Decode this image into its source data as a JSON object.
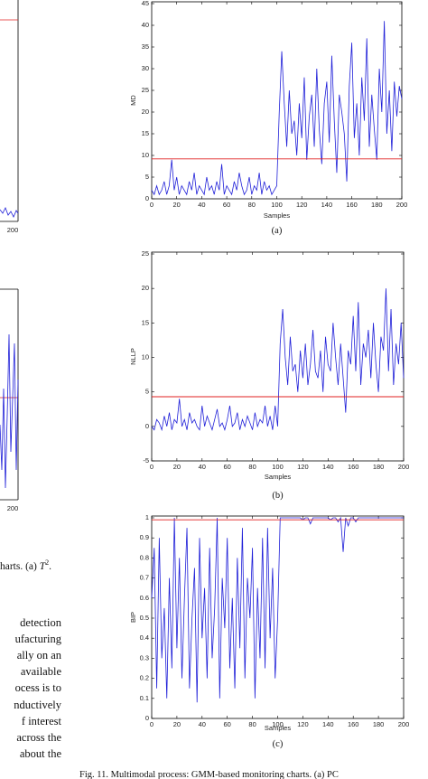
{
  "chart_data": [
    {
      "type": "line",
      "y_label": "MD",
      "x_label": "Samples",
      "panel_label": "(a)",
      "color": "#1f1fd8",
      "control_limit": 9.2,
      "control_color": "#e02020",
      "x": [
        0,
        2,
        4,
        6,
        8,
        10,
        12,
        14,
        16,
        18,
        20,
        22,
        24,
        26,
        28,
        30,
        32,
        34,
        36,
        38,
        40,
        42,
        44,
        46,
        48,
        50,
        52,
        54,
        56,
        58,
        60,
        62,
        64,
        66,
        68,
        70,
        72,
        74,
        76,
        78,
        80,
        82,
        84,
        86,
        88,
        90,
        92,
        94,
        96,
        98,
        100,
        102,
        104,
        106,
        108,
        110,
        112,
        114,
        116,
        118,
        120,
        122,
        124,
        126,
        128,
        130,
        132,
        134,
        136,
        138,
        140,
        142,
        144,
        146,
        148,
        150,
        152,
        154,
        156,
        158,
        160,
        162,
        164,
        166,
        168,
        170,
        172,
        174,
        176,
        178,
        180,
        182,
        184,
        186,
        188,
        190,
        192,
        194,
        196,
        198,
        200
      ],
      "values": [
        2,
        1,
        3,
        1,
        2,
        4,
        1,
        3,
        9,
        2,
        5,
        1,
        3,
        2,
        1,
        4,
        2,
        6,
        1,
        3,
        2,
        1,
        5,
        2,
        3,
        1,
        4,
        2,
        8,
        1,
        3,
        2,
        1,
        4,
        2,
        6,
        3,
        1,
        2,
        5,
        1,
        3,
        2,
        6,
        1,
        4,
        2,
        3,
        1,
        2,
        3,
        20,
        34,
        22,
        12,
        25,
        15,
        18,
        10,
        22,
        14,
        28,
        9,
        19,
        24,
        12,
        30,
        16,
        8,
        22,
        27,
        13,
        33,
        18,
        6,
        24,
        20,
        15,
        4,
        26,
        36,
        14,
        22,
        10,
        28,
        18,
        37,
        12,
        24,
        16,
        9,
        30,
        20,
        41,
        15,
        25,
        11,
        27,
        19,
        26,
        23
      ],
      "xlim": [
        0,
        200
      ],
      "xticks": [
        0,
        20,
        40,
        60,
        80,
        100,
        120,
        140,
        160,
        180,
        200
      ],
      "ylim": [
        0,
        45
      ],
      "yticks": [
        0,
        5,
        10,
        15,
        20,
        25,
        30,
        35,
        40,
        45
      ]
    },
    {
      "type": "line",
      "y_label": "NLLP",
      "x_label": "Samples",
      "panel_label": "(b)",
      "color": "#1f1fd8",
      "control_limit": 4.3,
      "control_color": "#e02020",
      "x": [
        0,
        2,
        4,
        6,
        8,
        10,
        12,
        14,
        16,
        18,
        20,
        22,
        24,
        26,
        28,
        30,
        32,
        34,
        36,
        38,
        40,
        42,
        44,
        46,
        48,
        50,
        52,
        54,
        56,
        58,
        60,
        62,
        64,
        66,
        68,
        70,
        72,
        74,
        76,
        78,
        80,
        82,
        84,
        86,
        88,
        90,
        92,
        94,
        96,
        98,
        100,
        102,
        104,
        106,
        108,
        110,
        112,
        114,
        116,
        118,
        120,
        122,
        124,
        126,
        128,
        130,
        132,
        134,
        136,
        138,
        140,
        142,
        144,
        146,
        148,
        150,
        152,
        154,
        156,
        158,
        160,
        162,
        164,
        166,
        168,
        170,
        172,
        174,
        176,
        178,
        180,
        182,
        184,
        186,
        188,
        190,
        192,
        194,
        196,
        198,
        200
      ],
      "values": [
        0,
        -0.5,
        1,
        0.5,
        -0.5,
        1.5,
        0,
        2,
        -0.5,
        1,
        0.5,
        4,
        0,
        1,
        -0.5,
        2,
        0.5,
        1,
        0,
        -0.5,
        3,
        0,
        1.5,
        0.5,
        -0.5,
        1,
        2.5,
        0,
        0.5,
        -0.5,
        1,
        3,
        0,
        0.5,
        2,
        -0.5,
        1,
        0,
        1.5,
        0.5,
        -0.5,
        2,
        0,
        1,
        0.5,
        3,
        0,
        1.5,
        -0.5,
        3,
        0,
        12,
        17,
        10,
        6,
        13,
        8,
        9,
        5,
        11,
        7,
        12,
        6,
        9,
        14,
        8,
        7,
        11,
        5,
        13,
        9,
        8,
        15,
        10,
        6,
        12,
        7,
        2,
        11,
        9,
        16,
        8,
        18,
        6,
        12,
        10,
        14,
        7,
        15,
        9,
        5,
        13,
        11,
        20,
        8,
        17,
        6,
        12,
        9,
        15,
        7
      ],
      "xlim": [
        0,
        200
      ],
      "xticks": [
        0,
        20,
        40,
        60,
        80,
        100,
        120,
        140,
        160,
        180,
        200
      ],
      "ylim": [
        -5,
        25
      ],
      "yticks": [
        -5,
        0,
        5,
        10,
        15,
        20,
        25
      ]
    },
    {
      "type": "line",
      "y_label": "BIP",
      "x_label": "Samples",
      "panel_label": "(c)",
      "color": "#1f1fd8",
      "control_limit": 0.99,
      "control_color": "#e02020",
      "x": [
        0,
        2,
        4,
        6,
        8,
        10,
        12,
        14,
        16,
        18,
        20,
        22,
        24,
        26,
        28,
        30,
        32,
        34,
        36,
        38,
        40,
        42,
        44,
        46,
        48,
        50,
        52,
        54,
        56,
        58,
        60,
        62,
        64,
        66,
        68,
        70,
        72,
        74,
        76,
        78,
        80,
        82,
        84,
        86,
        88,
        90,
        92,
        94,
        96,
        98,
        100,
        102,
        104,
        106,
        108,
        110,
        112,
        114,
        116,
        118,
        120,
        122,
        124,
        126,
        128,
        130,
        132,
        134,
        136,
        138,
        140,
        142,
        144,
        146,
        148,
        150,
        152,
        154,
        156,
        158,
        160,
        162,
        164,
        166,
        168,
        170,
        172,
        174,
        176,
        178,
        180,
        182,
        184,
        186,
        188,
        190,
        192,
        194,
        196,
        198,
        200
      ],
      "values": [
        0.6,
        0.85,
        0.15,
        0.9,
        0.3,
        0.55,
        0.1,
        0.7,
        0.25,
        1,
        0.35,
        0.8,
        0.2,
        0.6,
        0.95,
        0.15,
        0.5,
        0.75,
        0.08,
        0.9,
        0.4,
        0.65,
        0.2,
        0.85,
        0.3,
        0.55,
        1,
        0.1,
        0.7,
        0.45,
        0.9,
        0.25,
        0.6,
        0.15,
        0.8,
        0.35,
        0.95,
        0.2,
        0.7,
        0.5,
        0.85,
        0.1,
        0.65,
        0.3,
        0.9,
        0.25,
        0.95,
        0.4,
        0.75,
        0.2,
        0.5,
        1,
        1,
        1,
        1,
        1,
        1,
        1,
        1,
        1,
        0.99,
        1,
        1,
        0.97,
        1,
        1,
        1,
        1,
        1,
        1,
        1,
        0.99,
        1,
        1,
        0.98,
        1,
        0.83,
        1,
        0.96,
        1,
        1,
        0.98,
        1,
        1,
        1,
        1,
        1,
        1,
        1,
        1,
        1,
        1,
        1,
        1,
        1,
        1,
        1,
        1,
        1,
        1,
        1
      ],
      "xlim": [
        0,
        200
      ],
      "xticks": [
        0,
        20,
        40,
        60,
        80,
        100,
        120,
        140,
        160,
        180,
        200
      ],
      "ylim": [
        0,
        1
      ],
      "yticks": [
        0,
        0.1,
        0.2,
        0.3,
        0.4,
        0.5,
        0.6,
        0.7,
        0.8,
        0.9,
        1
      ]
    }
  ],
  "left_fragments": {
    "tick_top": "200",
    "tick_bottom": "200",
    "caption_parts": [
      "harts. (a) ",
      "T",
      "2",
      "."
    ]
  },
  "paragraph": [
    "detection",
    "ufacturing",
    "ally on an",
    "available",
    "ocess is to",
    "nductively",
    "f interest",
    "across the",
    "about the"
  ],
  "figure_caption": "Fig. 11.   Multimodal process: GMM-based monitoring charts. (a) PC"
}
